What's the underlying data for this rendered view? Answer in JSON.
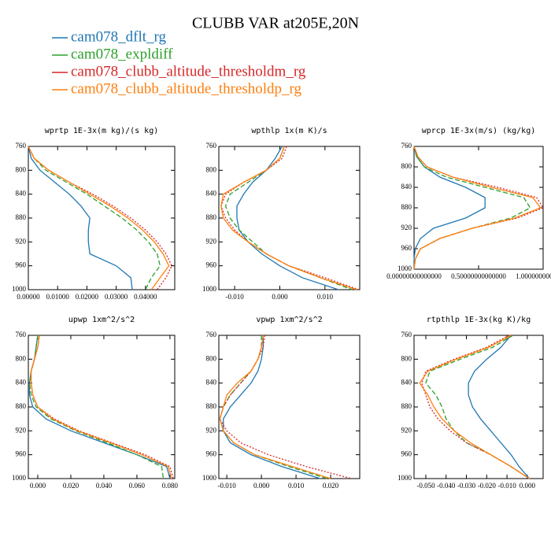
{
  "title": "CLUBB VAR at205E,20N",
  "legend": [
    {
      "name": "cam078_dflt_rg",
      "color": "#1f77b4",
      "dash": "none"
    },
    {
      "name": "cam078_expldiff",
      "color": "#2ca02c",
      "dash": "6 3"
    },
    {
      "name": "cam078_clubb_altitude_thresholdm_rg",
      "color": "#d62728",
      "dash": "2 2"
    },
    {
      "name": "cam078_clubb_altitude_thresholdp_rg",
      "color": "#ff7f0e",
      "dash": "none"
    }
  ],
  "chart_data": [
    {
      "type": "line",
      "title": "wprtp  1E-3x(m kg)/(s kg)",
      "y": [
        760,
        780,
        800,
        820,
        840,
        860,
        880,
        900,
        920,
        940,
        960,
        980,
        1000
      ],
      "ylim": [
        760,
        1000
      ],
      "yticks": [
        760,
        800,
        840,
        880,
        920,
        960,
        1000
      ],
      "invert_y": true,
      "xlim": [
        0,
        0.05
      ],
      "xticks": [
        {
          "value": 0,
          "label": "0.00000"
        },
        {
          "value": 0.01,
          "label": "0.01000"
        },
        {
          "value": 0.02,
          "label": "0.02000"
        },
        {
          "value": 0.03,
          "label": "0.03000"
        },
        {
          "value": 0.04,
          "label": "0.04000"
        }
      ],
      "series": [
        {
          "values": [
            0,
            0.001,
            0.004,
            0.009,
            0.014,
            0.018,
            0.021,
            0.0205,
            0.0205,
            0.021,
            0.03,
            0.035,
            0.0355
          ]
        },
        {
          "values": [
            0,
            0.002,
            0.006,
            0.013,
            0.02,
            0.026,
            0.032,
            0.037,
            0.041,
            0.044,
            0.045,
            0.042,
            0.04
          ]
        },
        {
          "values": [
            0,
            0.002,
            0.007,
            0.014,
            0.022,
            0.029,
            0.035,
            0.04,
            0.044,
            0.047,
            0.049,
            0.047,
            0.044
          ]
        },
        {
          "values": [
            0,
            0.002,
            0.007,
            0.014,
            0.021,
            0.028,
            0.034,
            0.039,
            0.043,
            0.046,
            0.048,
            0.045,
            0.042
          ]
        }
      ]
    },
    {
      "type": "line",
      "title": "wpthlp  1x(m K)/s",
      "y": [
        760,
        780,
        800,
        820,
        840,
        860,
        880,
        900,
        920,
        940,
        960,
        980,
        1000
      ],
      "ylim": [
        760,
        1000
      ],
      "yticks": [
        760,
        800,
        840,
        880,
        920,
        960,
        1000
      ],
      "invert_y": true,
      "xlim": [
        -0.0135,
        0.0177
      ],
      "xticks": [
        {
          "value": -0.01,
          "label": "-0.010"
        },
        {
          "value": 0,
          "label": "0.000"
        },
        {
          "value": 0.01,
          "label": "0.010"
        }
      ],
      "series": [
        {
          "values": [
            0.0005,
            -0.001,
            -0.003,
            -0.006,
            -0.008,
            -0.0095,
            -0.0095,
            -0.009,
            -0.007,
            -0.004,
            0,
            0.005,
            0.013
          ]
        },
        {
          "values": [
            0.001,
            0,
            -0.003,
            -0.007,
            -0.011,
            -0.012,
            -0.011,
            -0.009,
            -0.006,
            -0.003,
            0.002,
            0.009,
            0.016
          ]
        },
        {
          "values": [
            0.0015,
            0.0005,
            -0.003,
            -0.008,
            -0.012,
            -0.013,
            -0.012,
            -0.01,
            -0.007,
            -0.003,
            0.002,
            0.01,
            0.0175
          ]
        },
        {
          "values": [
            0.001,
            0,
            -0.003,
            -0.008,
            -0.0125,
            -0.013,
            -0.0125,
            -0.0105,
            -0.007,
            -0.003,
            0.002,
            0.009,
            0.017
          ]
        }
      ]
    },
    {
      "type": "line",
      "title": "wprcp  1E-3x(m/s) (kg/kg)",
      "y": [
        760,
        780,
        800,
        820,
        840,
        860,
        880,
        900,
        920,
        940,
        960,
        980,
        1000
      ],
      "ylim": [
        760,
        1000
      ],
      "yticks": [
        760,
        800,
        840,
        880,
        920,
        960,
        1000
      ],
      "invert_y": true,
      "xlim": [
        0,
        1
      ],
      "xticks": [
        {
          "value": 0,
          "label": "0.00000000000000"
        },
        {
          "value": 0.5,
          "label": "0.50000000000000"
        },
        {
          "value": 1,
          "label": "1.00000000000000"
        }
      ],
      "series": [
        {
          "values": [
            0,
            0.02,
            0.08,
            0.2,
            0.4,
            0.55,
            0.55,
            0.4,
            0.15,
            0.05,
            0.01,
            0,
            0
          ]
        },
        {
          "values": [
            0,
            0.02,
            0.08,
            0.25,
            0.55,
            0.85,
            0.9,
            0.75,
            0.45,
            0.2,
            0.05,
            0.01,
            0
          ]
        },
        {
          "values": [
            0,
            0.03,
            0.1,
            0.3,
            0.65,
            0.95,
            1,
            0.8,
            0.45,
            0.2,
            0.05,
            0.01,
            0
          ]
        },
        {
          "values": [
            0,
            0.03,
            0.1,
            0.3,
            0.6,
            0.92,
            0.98,
            0.78,
            0.45,
            0.2,
            0.05,
            0.01,
            0
          ]
        }
      ]
    },
    {
      "type": "line",
      "title": "upwp  1xm^2/s^2",
      "y": [
        760,
        780,
        800,
        820,
        840,
        860,
        880,
        900,
        920,
        940,
        960,
        980,
        1000
      ],
      "ylim": [
        760,
        1000
      ],
      "yticks": [
        760,
        800,
        840,
        880,
        920,
        960,
        1000
      ],
      "invert_y": true,
      "xlim": [
        -0.0057,
        0.0829
      ],
      "xticks": [
        {
          "value": 0,
          "label": "0.000"
        },
        {
          "value": 0.02,
          "label": "0.020"
        },
        {
          "value": 0.04,
          "label": "0.040"
        },
        {
          "value": 0.06,
          "label": "0.060"
        },
        {
          "value": 0.08,
          "label": "0.080"
        }
      ],
      "series": [
        {
          "values": [
            0,
            -0.001,
            -0.002,
            -0.004,
            -0.005,
            -0.005,
            -0.003,
            0.005,
            0.02,
            0.04,
            0.06,
            0.078,
            0.08
          ]
        },
        {
          "values": [
            0,
            -0.001,
            -0.002,
            -0.004,
            -0.005,
            -0.004,
            -0.001,
            0.008,
            0.023,
            0.042,
            0.06,
            0.075,
            0.076
          ]
        },
        {
          "values": [
            0.001,
            0,
            -0.002,
            -0.004,
            -0.004,
            -0.003,
            0,
            0.01,
            0.025,
            0.045,
            0.065,
            0.08,
            0.082
          ]
        },
        {
          "values": [
            0.001,
            0,
            -0.002,
            -0.004,
            -0.004,
            -0.003,
            0,
            0.009,
            0.024,
            0.044,
            0.063,
            0.079,
            0.081
          ]
        }
      ]
    },
    {
      "type": "line",
      "title": "vpwp  1xm^2/s^2",
      "y": [
        760,
        780,
        800,
        820,
        840,
        860,
        880,
        900,
        920,
        940,
        960,
        980,
        1000
      ],
      "ylim": [
        760,
        1000
      ],
      "yticks": [
        760,
        800,
        840,
        880,
        920,
        960,
        1000
      ],
      "invert_y": true,
      "xlim": [
        -0.0123,
        0.0284
      ],
      "xticks": [
        {
          "value": -0.01,
          "label": "-0.010"
        },
        {
          "value": 0,
          "label": "0.000"
        },
        {
          "value": 0.01,
          "label": "0.010"
        },
        {
          "value": 0.02,
          "label": "0.020"
        }
      ],
      "series": [
        {
          "values": [
            0.0005,
            0.0005,
            0,
            -0.001,
            -0.003,
            -0.006,
            -0.009,
            -0.011,
            -0.011,
            -0.009,
            -0.003,
            0.006,
            0.017
          ]
        },
        {
          "values": [
            0,
            0,
            -0.001,
            -0.003,
            -0.006,
            -0.009,
            -0.011,
            -0.012,
            -0.011,
            -0.008,
            -0.002,
            0.008,
            0.019
          ]
        },
        {
          "values": [
            0.001,
            0.0005,
            -0.001,
            -0.003,
            -0.006,
            -0.009,
            -0.011,
            -0.012,
            -0.01,
            -0.006,
            0.002,
            0.013,
            0.026
          ]
        },
        {
          "values": [
            0.0005,
            0,
            -0.001,
            -0.003,
            -0.007,
            -0.01,
            -0.011,
            -0.012,
            -0.011,
            -0.008,
            -0.002,
            0.009,
            0.02
          ]
        }
      ]
    },
    {
      "type": "line",
      "title": "rtpthlp  1E-3x(kg K)/kg",
      "y": [
        760,
        780,
        800,
        820,
        840,
        860,
        880,
        900,
        920,
        940,
        960,
        980,
        1000
      ],
      "ylim": [
        760,
        1000
      ],
      "yticks": [
        760,
        800,
        840,
        880,
        920,
        960,
        1000
      ],
      "invert_y": true,
      "xlim": [
        -0.0558,
        0.0078
      ],
      "xticks": [
        {
          "value": -0.05,
          "label": "-0.050"
        },
        {
          "value": -0.04,
          "label": "-0.040"
        },
        {
          "value": -0.03,
          "label": "-0.030"
        },
        {
          "value": -0.02,
          "label": "-0.020"
        },
        {
          "value": -0.01,
          "label": "-0.010"
        },
        {
          "value": 0,
          "label": "0.000"
        }
      ],
      "series": [
        {
          "values": [
            -0.008,
            -0.013,
            -0.02,
            -0.026,
            -0.029,
            -0.029,
            -0.027,
            -0.023,
            -0.018,
            -0.013,
            -0.008,
            -0.004,
            0.001
          ]
        },
        {
          "values": [
            -0.007,
            -0.017,
            -0.033,
            -0.048,
            -0.05,
            -0.045,
            -0.042,
            -0.04,
            -0.036,
            -0.03,
            -0.018,
            -0.008,
            0.001
          ]
        },
        {
          "values": [
            -0.009,
            -0.02,
            -0.036,
            -0.05,
            -0.052,
            -0.05,
            -0.048,
            -0.044,
            -0.038,
            -0.03,
            -0.018,
            -0.008,
            0.001
          ]
        },
        {
          "values": [
            -0.008,
            -0.019,
            -0.035,
            -0.049,
            -0.053,
            -0.049,
            -0.046,
            -0.042,
            -0.036,
            -0.028,
            -0.018,
            -0.008,
            0.001
          ]
        }
      ]
    }
  ]
}
